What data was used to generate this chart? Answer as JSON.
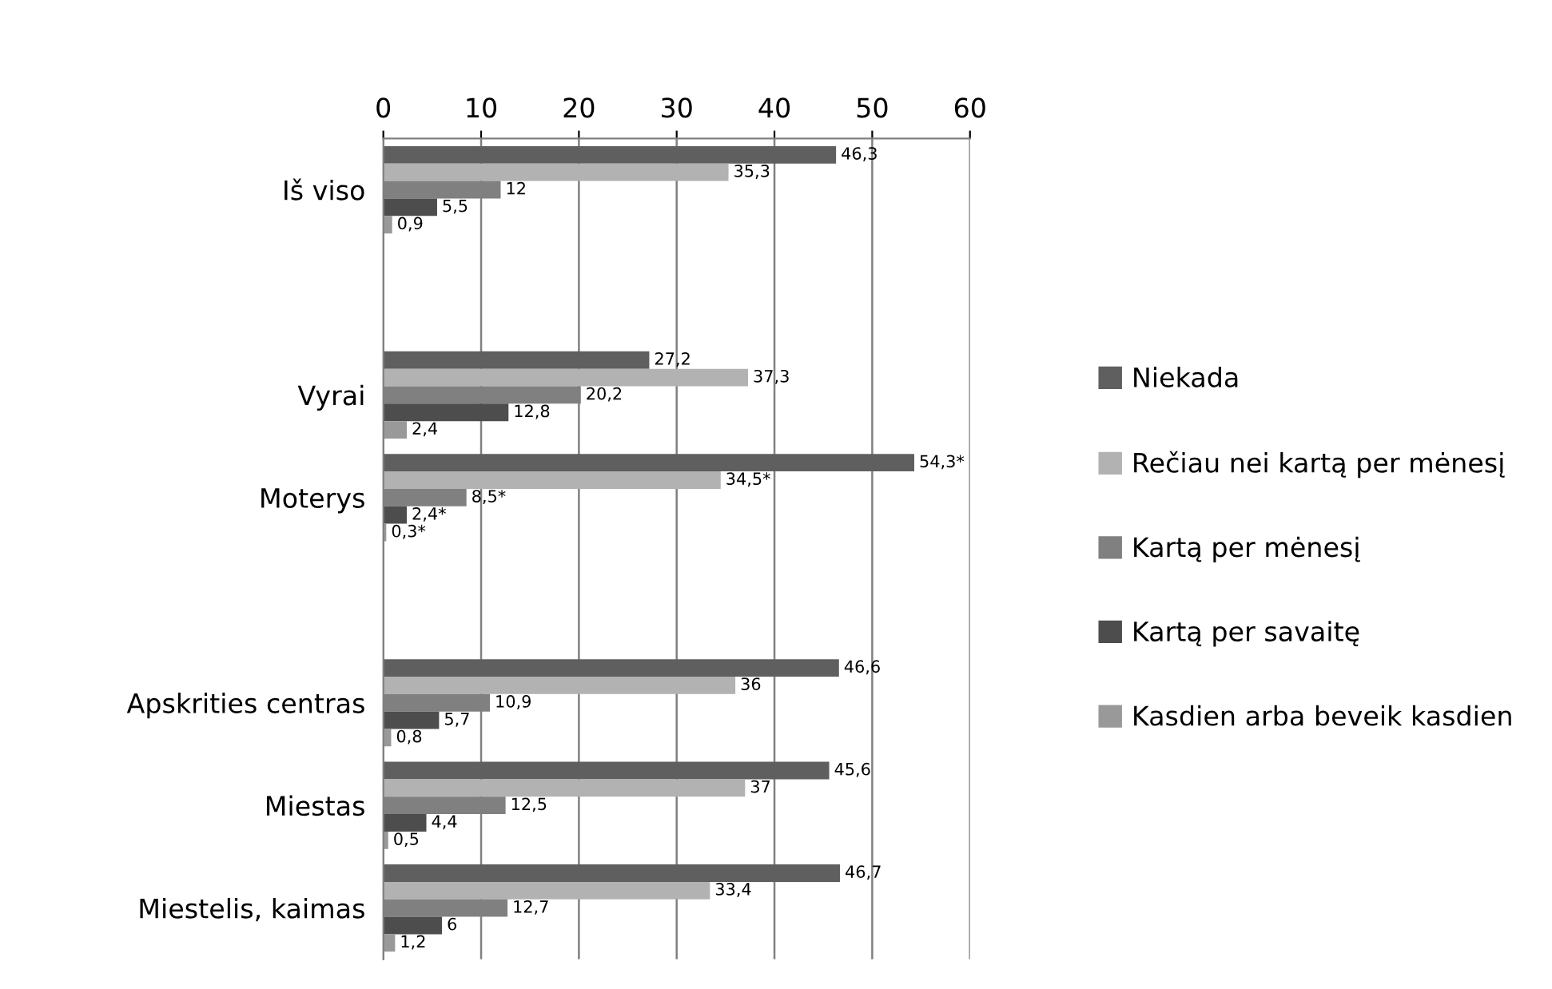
{
  "chart_data": {
    "type": "bar",
    "orientation": "horizontal",
    "categories": [
      "Iš viso",
      null,
      "Vyrai",
      "Moterys",
      null,
      "Apskrities centras",
      "Miestas",
      "Miestelis, kaimas"
    ],
    "series": [
      {
        "name": "Niekada",
        "color": "#5f5f5f",
        "values": [
          46.3,
          null,
          27.2,
          54.3,
          null,
          46.6,
          45.6,
          46.7
        ],
        "value_labels": [
          "46,3",
          null,
          "27,2",
          "54,3*",
          null,
          "46,6",
          "45,6",
          "46,7"
        ]
      },
      {
        "name": "Rečiau nei kartą per mėnesį",
        "color": "#b2b2b2",
        "values": [
          35.3,
          null,
          37.3,
          34.5,
          null,
          36,
          37,
          33.4
        ],
        "value_labels": [
          "35,3",
          null,
          "37,3",
          "34,5*",
          null,
          "36",
          "37",
          "33,4"
        ]
      },
      {
        "name": "Kartą per mėnesį",
        "color": "#808080",
        "values": [
          12,
          null,
          20.2,
          8.5,
          null,
          10.9,
          12.5,
          12.7
        ],
        "value_labels": [
          "12",
          null,
          "20,2",
          "8,5*",
          null,
          "10,9",
          "12,5",
          "12,7"
        ]
      },
      {
        "name": "Kartą per savaitę",
        "color": "#4d4d4d",
        "values": [
          5.5,
          null,
          12.8,
          2.4,
          null,
          5.7,
          4.4,
          6
        ],
        "value_labels": [
          "5,5",
          null,
          "12,8",
          "2,4*",
          null,
          "5,7",
          "4,4",
          "6"
        ]
      },
      {
        "name": "Kasdien arba beveik kasdien",
        "color": "#999999",
        "values": [
          0.9,
          null,
          2.4,
          0.3,
          null,
          0.8,
          0.5,
          1.2
        ],
        "value_labels": [
          "0,9",
          null,
          "2,4",
          "0,3*",
          null,
          "0,8",
          "0,5",
          "1,2"
        ]
      }
    ],
    "xlim": [
      0,
      60
    ],
    "xticks": [
      0,
      10,
      20,
      30,
      40,
      50,
      60
    ],
    "grid": "x",
    "legend": "right"
  }
}
